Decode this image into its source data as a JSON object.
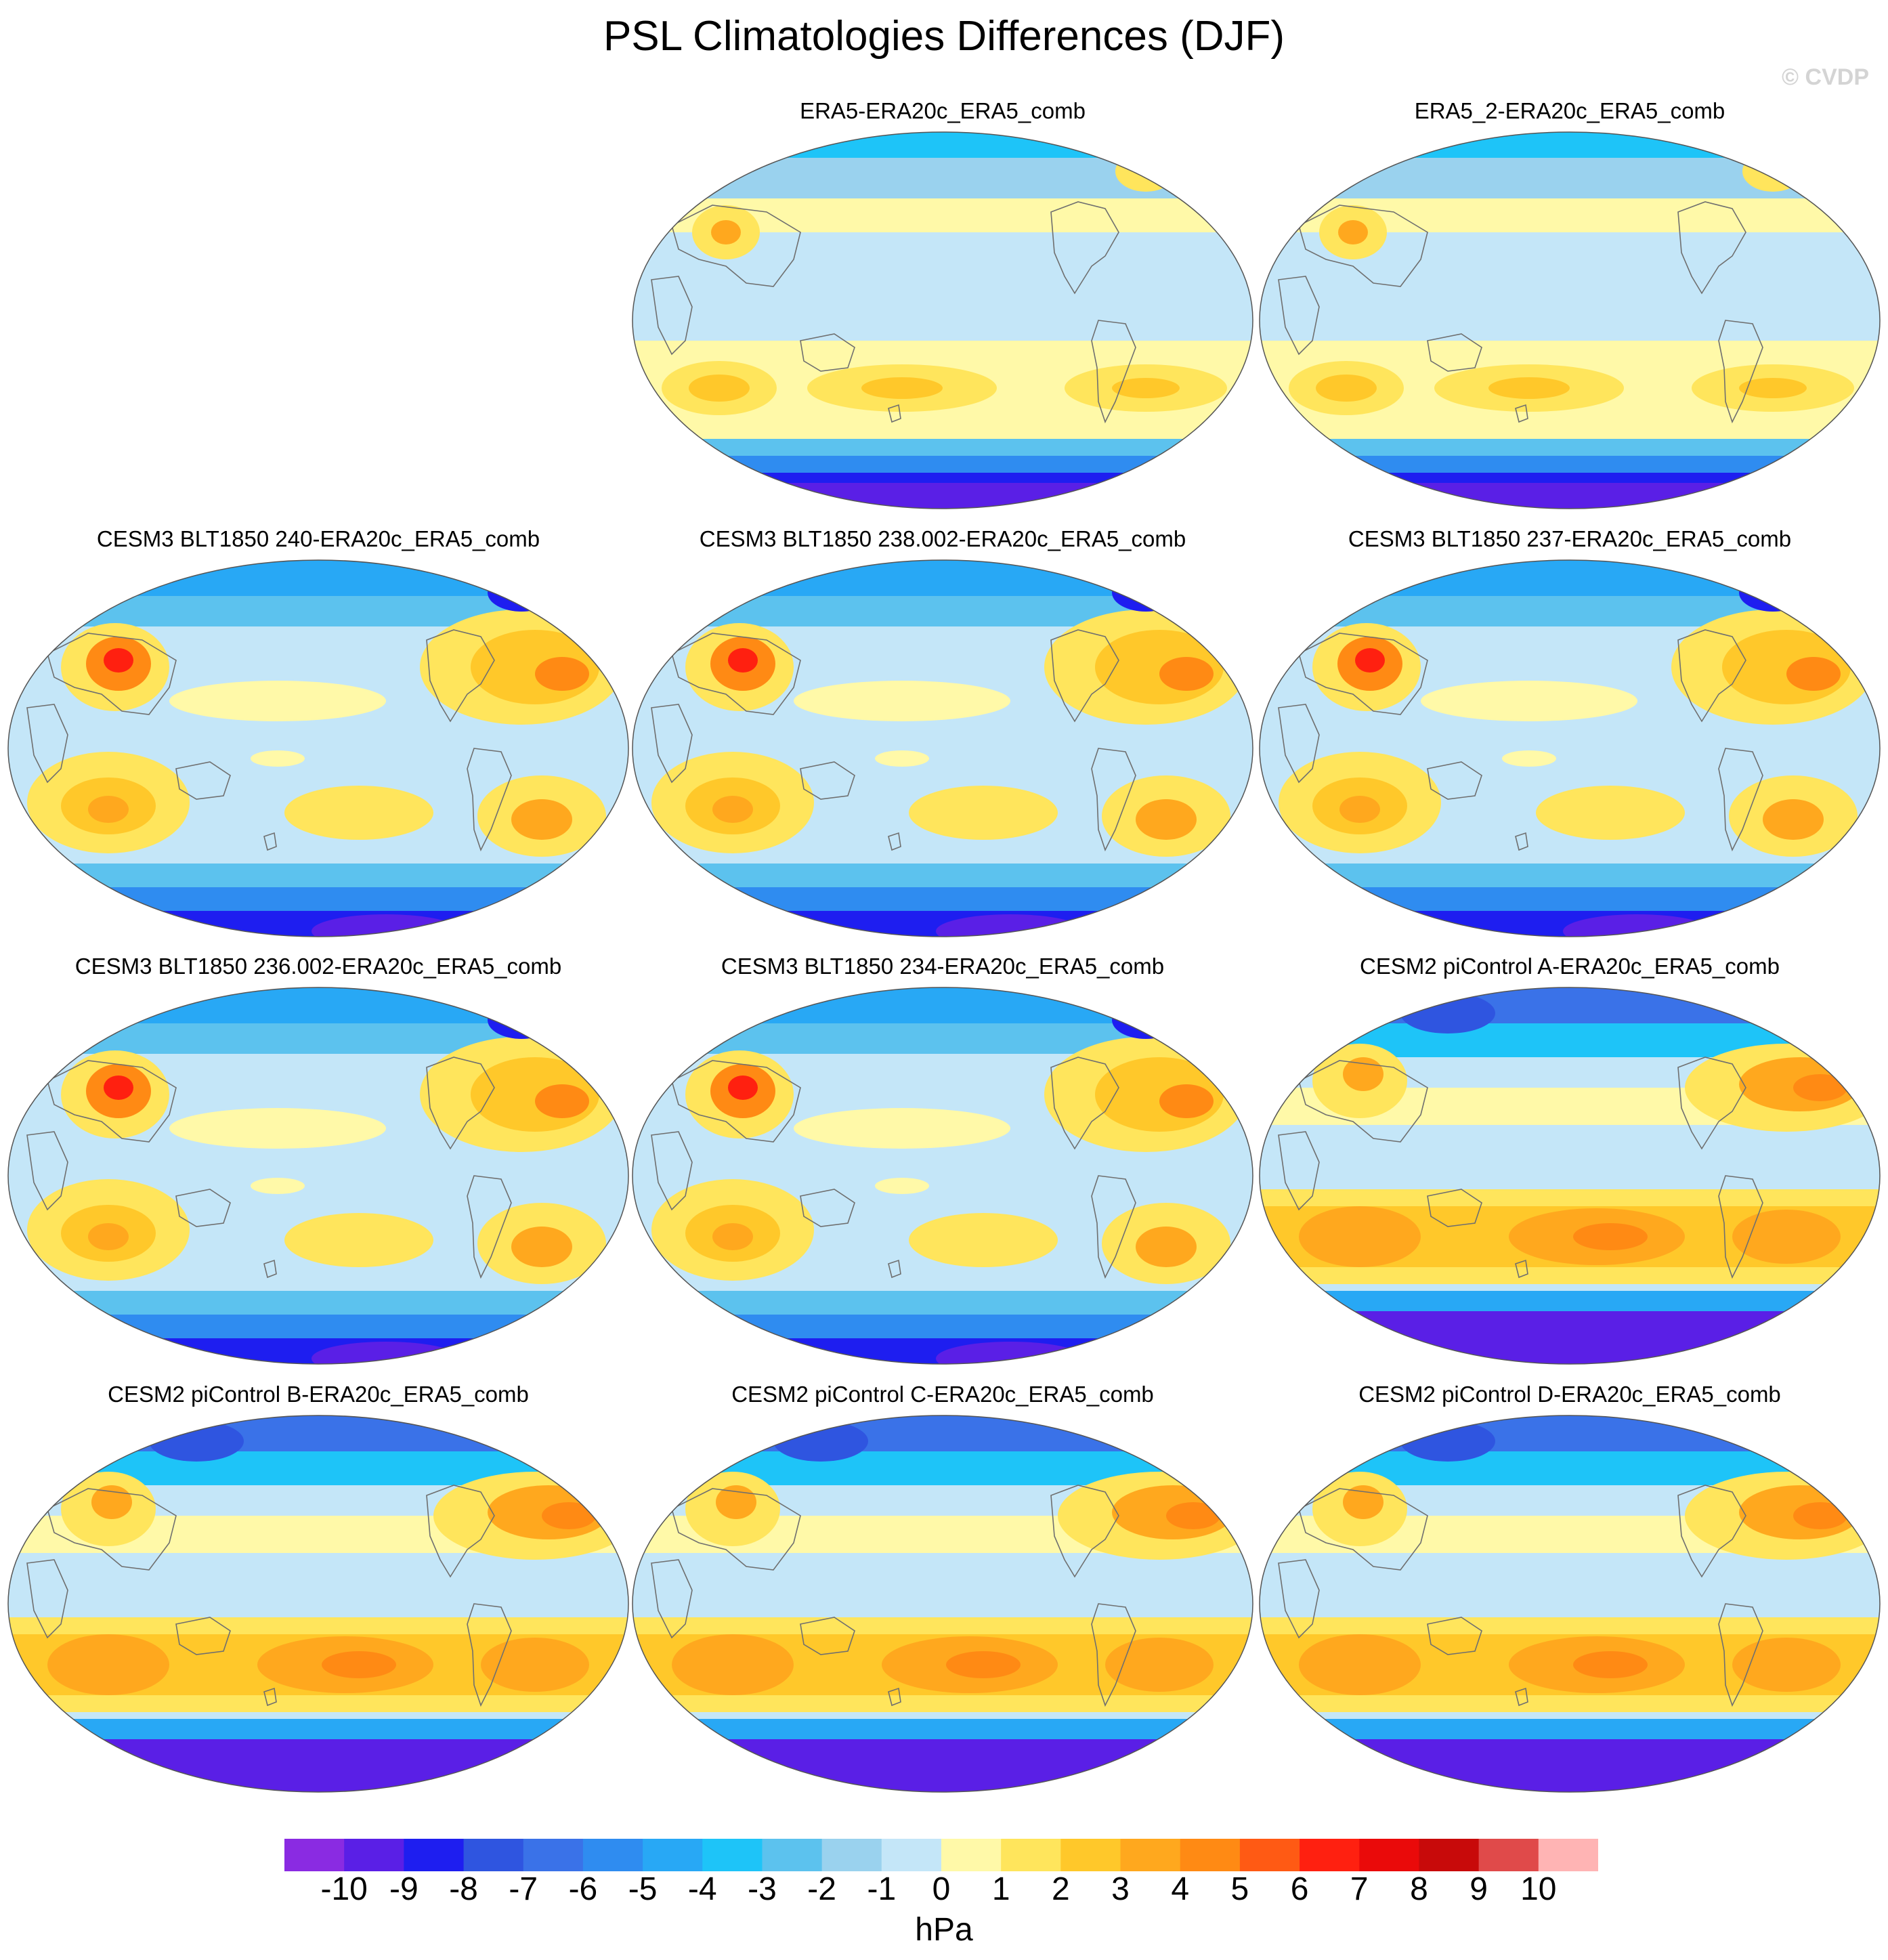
{
  "title": "PSL Climatologies Differences (DJF)",
  "watermark": "© CVDP",
  "colorbar": {
    "labels": [
      "-10",
      "-9",
      "-8",
      "-7",
      "-6",
      "-5",
      "-4",
      "-3",
      "-2",
      "-1",
      "0",
      "1",
      "2",
      "3",
      "4",
      "5",
      "6",
      "7",
      "8",
      "9",
      "10"
    ],
    "colors": [
      "#8a2be2",
      "#5a1fe6",
      "#1e1ef0",
      "#2f55e0",
      "#3a72e8",
      "#2f8cf0",
      "#28a8f5",
      "#1ec4f8",
      "#5cc2ee",
      "#9ad2ee",
      "#c4e6f8",
      "#fff9a8",
      "#ffe55c",
      "#ffc82a",
      "#ffa81e",
      "#ff8a14",
      "#ff5a14",
      "#ff2010",
      "#ea0a0a",
      "#c80a0a",
      "#e04a4a",
      "#ffb4b4"
    ],
    "units": "hPa"
  },
  "panels": [
    {
      "title": "ERA5-ERA20c_ERA5_comb",
      "scheme": "a"
    },
    {
      "title": "ERA5_2-ERA20c_ERA5_comb",
      "scheme": "a"
    },
    {
      "title": "CESM3 BLT1850 240-ERA20c_ERA5_comb",
      "scheme": "b"
    },
    {
      "title": "CESM3 BLT1850 238.002-ERA20c_ERA5_comb",
      "scheme": "b"
    },
    {
      "title": "CESM3 BLT1850 237-ERA20c_ERA5_comb",
      "scheme": "b"
    },
    {
      "title": "CESM3 BLT1850 236.002-ERA20c_ERA5_comb",
      "scheme": "b"
    },
    {
      "title": "CESM3 BLT1850 234-ERA20c_ERA5_comb",
      "scheme": "b"
    },
    {
      "title": "CESM2 piControl A-ERA20c_ERA5_comb",
      "scheme": "c"
    },
    {
      "title": "CESM2 piControl B-ERA20c_ERA5_comb",
      "scheme": "c"
    },
    {
      "title": "CESM2 piControl C-ERA20c_ERA5_comb",
      "scheme": "c"
    },
    {
      "title": "CESM2 piControl D-ERA20c_ERA5_comb",
      "scheme": "c"
    }
  ]
}
